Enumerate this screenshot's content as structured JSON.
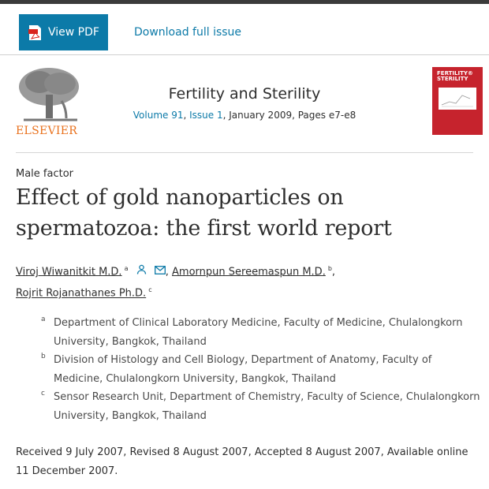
{
  "toolbar": {
    "view_pdf": "View PDF",
    "download": "Download full issue"
  },
  "publisher": {
    "logo_text": "ELSEVIER"
  },
  "journal": {
    "name": "Fertility and Sterility",
    "volume": "Volume 91",
    "issue": "Issue 1",
    "rest": ", January 2009, Pages e7-e8"
  },
  "cover": {
    "line1": "FERTILITY®",
    "line2": "STERILITY"
  },
  "article": {
    "section": "Male factor",
    "title": "Effect of gold nanoparticles on spermatozoa: the first world report",
    "authors": [
      {
        "name": "Viroj Wiwanitkit M.D.",
        "sup": "a"
      },
      {
        "name": "Amornpun Sereemaspun M.D.",
        "sup": "b"
      },
      {
        "name": "Rojrit Rojanathanes Ph.D.",
        "sup": "c"
      }
    ],
    "affiliations": [
      {
        "label": "a",
        "text": "Department of Clinical Laboratory Medicine, Faculty of Medicine, Chulalongkorn University, Bangkok, Thailand"
      },
      {
        "label": "b",
        "text": "Division of Histology and Cell Biology, Department of Anatomy, Faculty of Medicine, Chulalongkorn University, Bangkok, Thailand"
      },
      {
        "label": "c",
        "text": "Sensor Research Unit, Department of Chemistry, Faculty of Science, Chulalongkorn University, Bangkok, Thailand"
      }
    ],
    "dates": "Received 9 July 2007, Revised 8 August 2007, Accepted 8 August 2007, Available online 11 December 2007."
  },
  "colors": {
    "accent": "#0c7aa8",
    "elsevier_orange": "#e9711c",
    "cover_red": "#c6232d"
  },
  "icons": [
    "pdf-icon",
    "person-icon",
    "mail-icon"
  ]
}
